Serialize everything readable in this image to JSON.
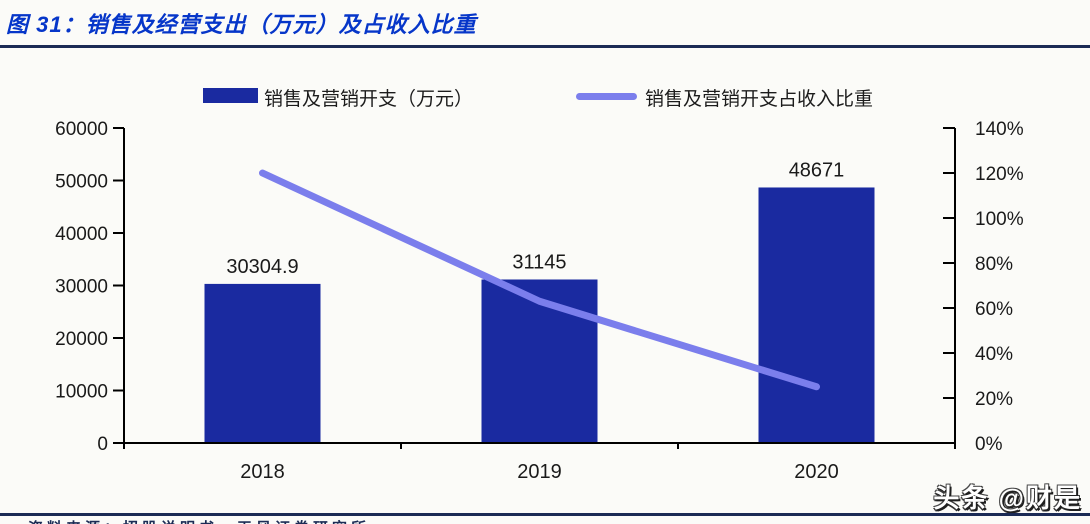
{
  "header": {
    "title": "图 31：销售及经营支出（万元）及占收入比重"
  },
  "watermark": "头条 @财是",
  "footer": {
    "source": "资料来源：招股说明书，天风证券研究所"
  },
  "colors": {
    "bar": "#1A2AA0",
    "line": "#7B7EEC",
    "title_blue": "#0636C9",
    "rule_navy": "#1B2B55",
    "axis": "#000000",
    "text": "#1A1A1A",
    "page_bg": "#FBFBF8"
  },
  "chart_data": {
    "type": "combo-bar-line",
    "title": "销售及经营支出（万元）及占收入比重",
    "categories": [
      "2018",
      "2019",
      "2020"
    ],
    "series": [
      {
        "name": "销售及营销开支（万元）",
        "type": "bar",
        "y_axis": "left",
        "values": [
          30304.9,
          31145,
          48671
        ],
        "data_labels": [
          "30304.9",
          "31145",
          "48671"
        ],
        "color": "#1A2AA0"
      },
      {
        "name": "销售及营销开支占收入比重",
        "type": "line",
        "y_axis": "right",
        "values": [
          120,
          63,
          25
        ],
        "unit": "%",
        "color": "#7B7EEC"
      }
    ],
    "left_axis": {
      "min": 0,
      "max": 60000,
      "step": 10000,
      "tick_labels": [
        "0",
        "10000",
        "20000",
        "30000",
        "40000",
        "50000",
        "60000"
      ]
    },
    "right_axis": {
      "min": 0,
      "max": 140,
      "step": 20,
      "tick_labels": [
        "0%",
        "20%",
        "40%",
        "60%",
        "80%",
        "100%",
        "120%",
        "140%"
      ]
    },
    "legend_position": "top",
    "grid": false
  }
}
